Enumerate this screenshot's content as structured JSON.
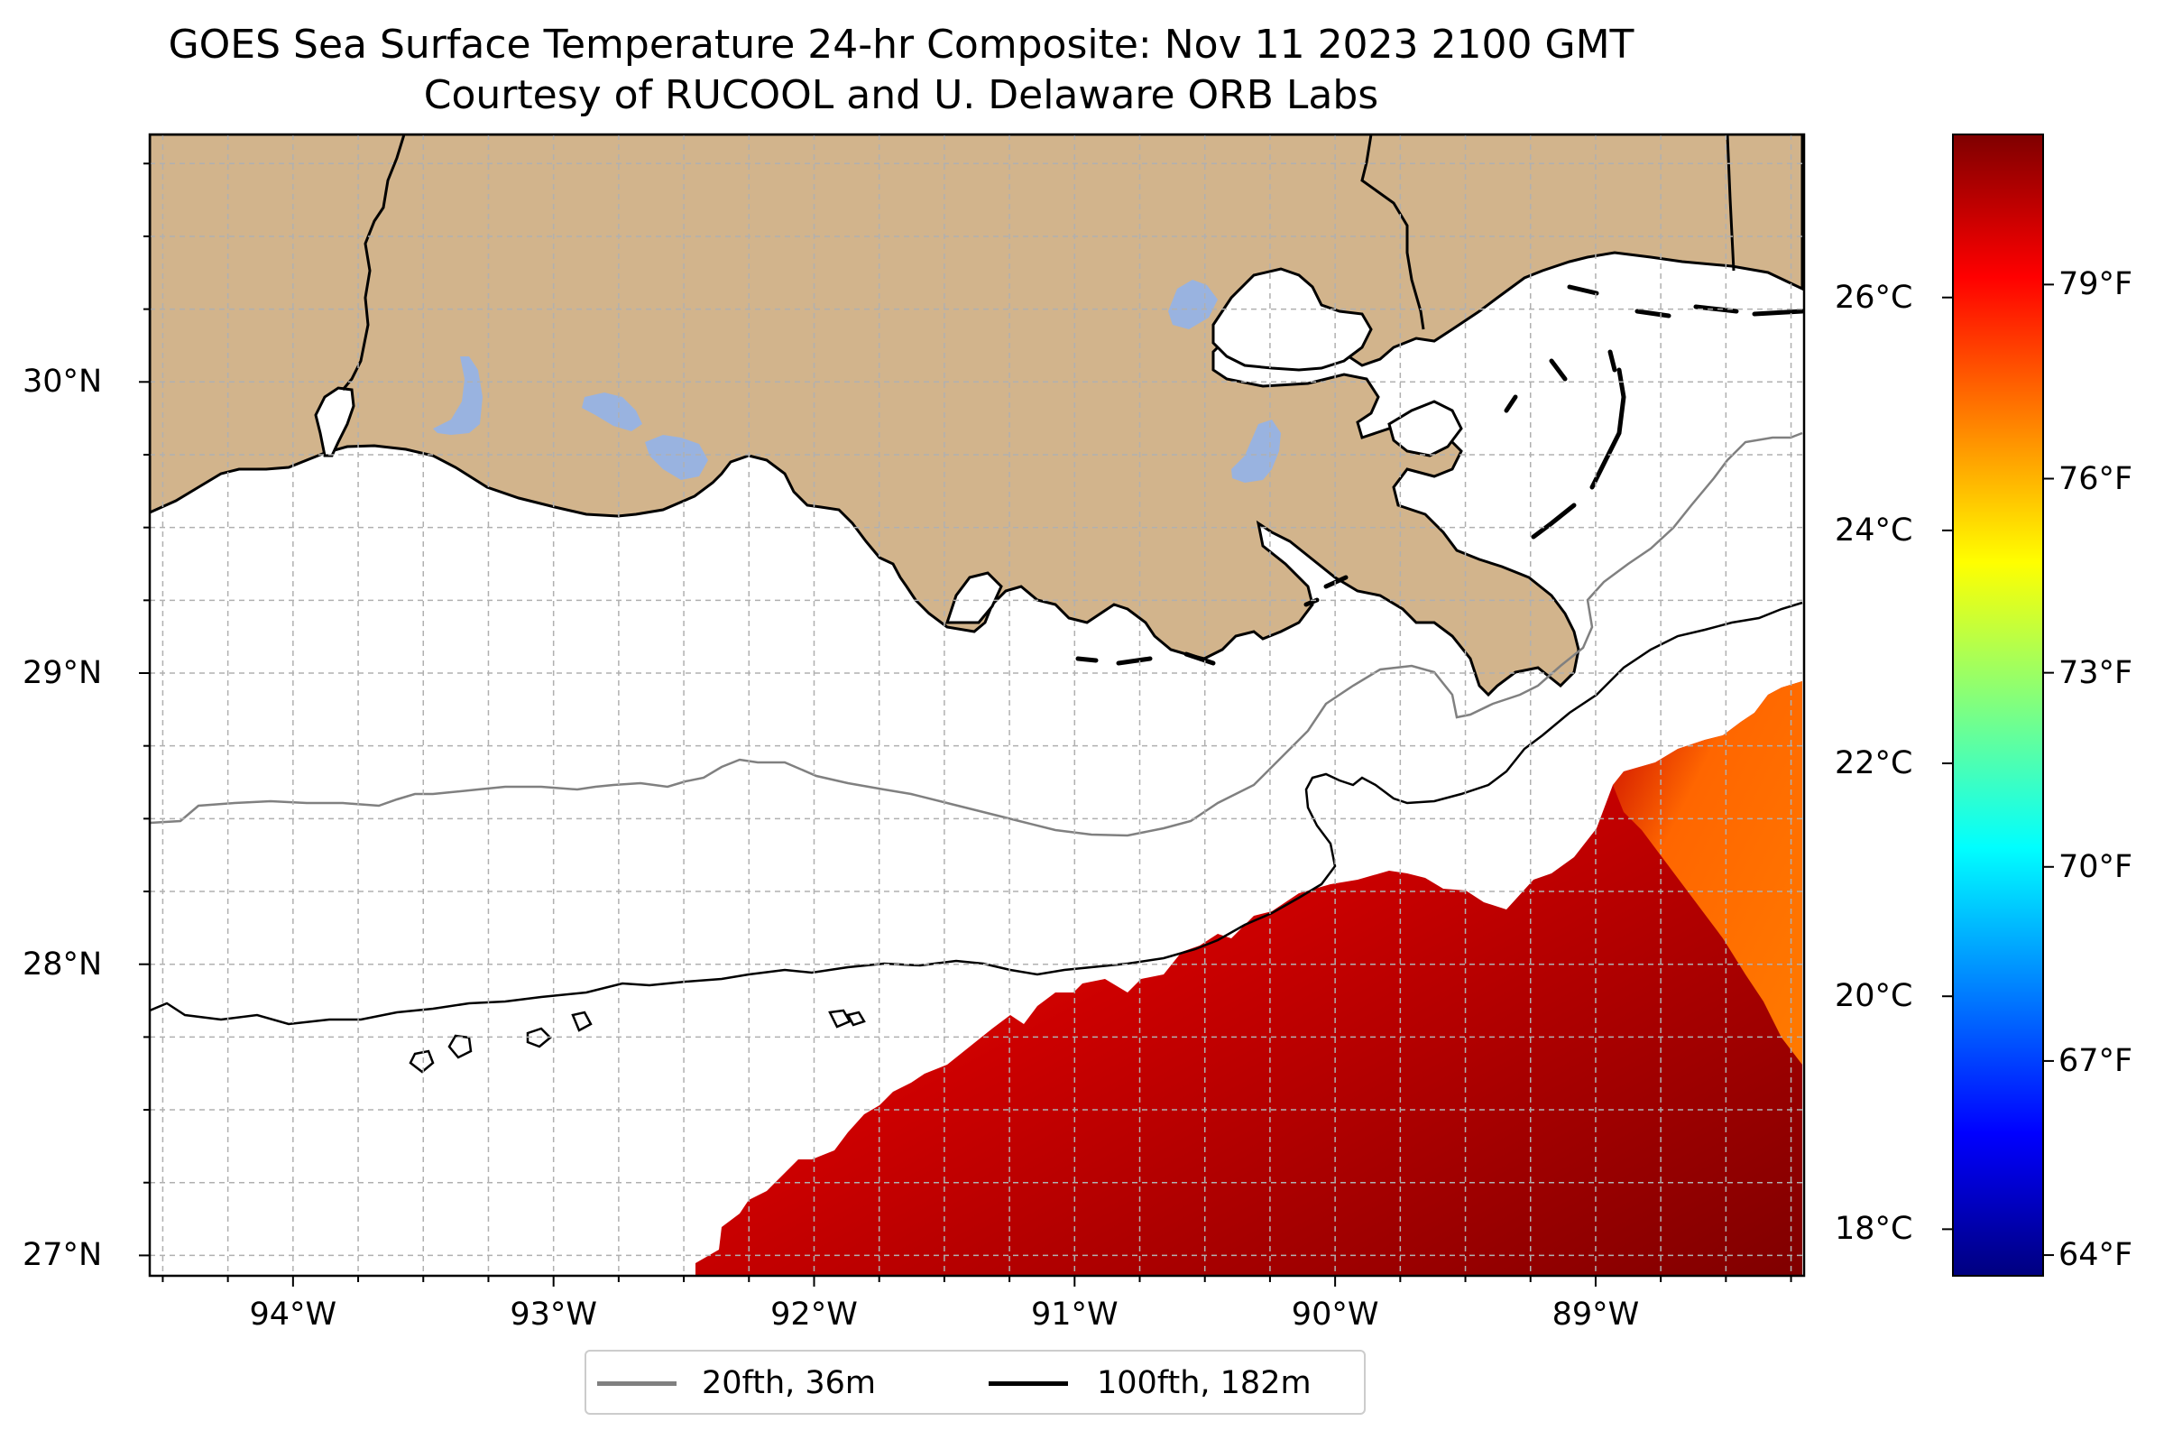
{
  "map": {
    "title": "GOES Sea Surface Temperature 24-hr Composite: Nov 11 2023 2100 GMT",
    "subtitle": "Courtesy of RUCOOL and U. Delaware ORB Labs",
    "lon_range": [
      -94.55,
      -88.2
    ],
    "lat_range": [
      26.93,
      30.85
    ],
    "lon_ticks": [
      {
        "value": -94,
        "label": "94°W"
      },
      {
        "value": -93,
        "label": "93°W"
      },
      {
        "value": -92,
        "label": "92°W"
      },
      {
        "value": -91,
        "label": "91°W"
      },
      {
        "value": -90,
        "label": "90°W"
      },
      {
        "value": -89,
        "label": "89°W"
      }
    ],
    "lat_ticks": [
      {
        "value": 27,
        "label": "27°N"
      },
      {
        "value": 28,
        "label": "28°N"
      },
      {
        "value": 29,
        "label": "29°N"
      },
      {
        "value": 30,
        "label": "30°N"
      }
    ],
    "gridlines": true,
    "land_color": "#d2b48c",
    "lake_color": "#99b3e0",
    "sst_colormap": "jet"
  },
  "colorbar": {
    "celsius_range": [
      17.6,
      27.4
    ],
    "celsius_ticks": [
      {
        "value": 18,
        "label": "18°C"
      },
      {
        "value": 20,
        "label": "20°C"
      },
      {
        "value": 22,
        "label": "22°C"
      },
      {
        "value": 24,
        "label": "24°C"
      },
      {
        "value": 26,
        "label": "26°C"
      }
    ],
    "fahrenheit_ticks": [
      {
        "value": 64,
        "label": "64°F"
      },
      {
        "value": 67,
        "label": "67°F"
      },
      {
        "value": 70,
        "label": "70°F"
      },
      {
        "value": 73,
        "label": "73°F"
      },
      {
        "value": 76,
        "label": "76°F"
      },
      {
        "value": 79,
        "label": "79°F"
      }
    ]
  },
  "legend": {
    "position": "lower-center",
    "entries": [
      {
        "label": "20fth, 36m",
        "color": "#808080"
      },
      {
        "label": "100fth, 182m",
        "color": "#000000"
      }
    ]
  }
}
